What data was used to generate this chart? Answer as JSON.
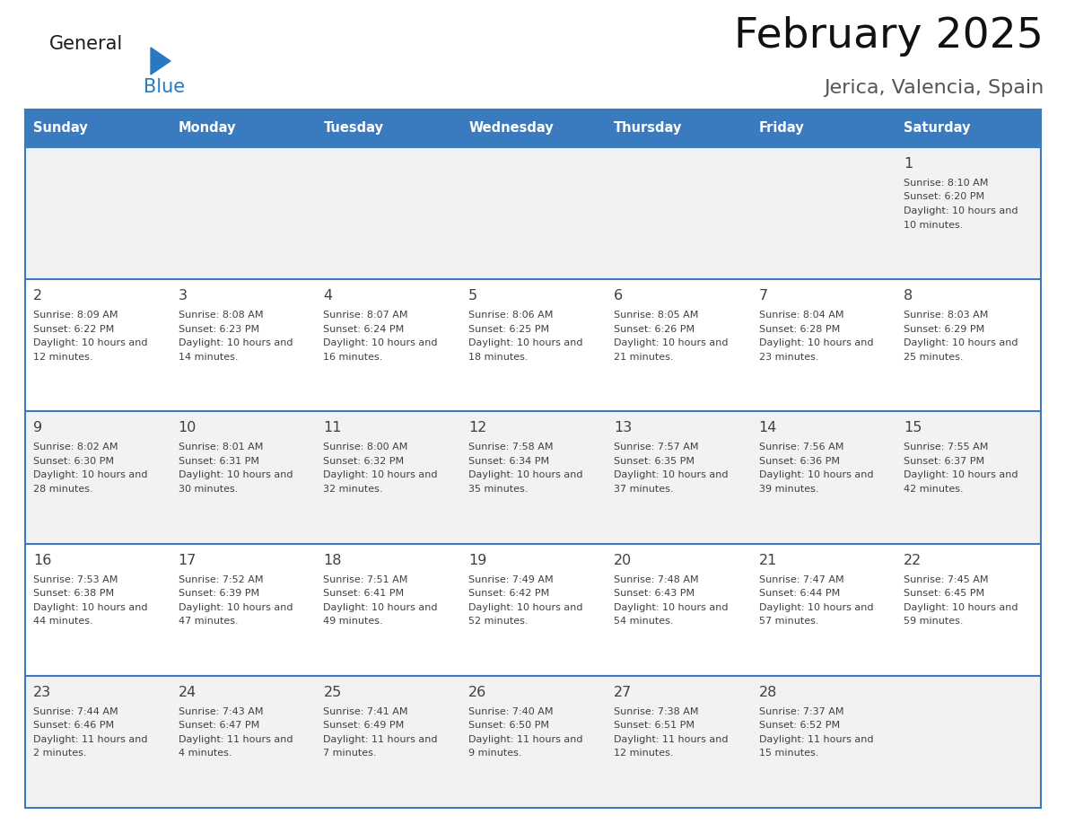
{
  "title": "February 2025",
  "subtitle": "Jerica, Valencia, Spain",
  "header_bg": "#3a7bbf",
  "header_text_color": "#ffffff",
  "days_of_week": [
    "Sunday",
    "Monday",
    "Tuesday",
    "Wednesday",
    "Thursday",
    "Friday",
    "Saturday"
  ],
  "cell_bg_row0": "#f2f2f2",
  "cell_bg_row1": "#ffffff",
  "cell_bg_row2": "#f2f2f2",
  "cell_bg_row3": "#ffffff",
  "cell_bg_row4": "#f2f2f2",
  "grid_line_color": "#3a7bbf",
  "text_color": "#404040",
  "day_num_color": "#404040",
  "logo_general_color": "#1a1a1a",
  "logo_blue_color": "#2879c0",
  "logo_triangle_color": "#2879c0",
  "calendar_data": [
    [
      null,
      null,
      null,
      null,
      null,
      null,
      {
        "day": 1,
        "sunrise": "8:10 AM",
        "sunset": "6:20 PM",
        "daylight": "10 hours and 10 minutes."
      }
    ],
    [
      {
        "day": 2,
        "sunrise": "8:09 AM",
        "sunset": "6:22 PM",
        "daylight": "10 hours and 12 minutes."
      },
      {
        "day": 3,
        "sunrise": "8:08 AM",
        "sunset": "6:23 PM",
        "daylight": "10 hours and 14 minutes."
      },
      {
        "day": 4,
        "sunrise": "8:07 AM",
        "sunset": "6:24 PM",
        "daylight": "10 hours and 16 minutes."
      },
      {
        "day": 5,
        "sunrise": "8:06 AM",
        "sunset": "6:25 PM",
        "daylight": "10 hours and 18 minutes."
      },
      {
        "day": 6,
        "sunrise": "8:05 AM",
        "sunset": "6:26 PM",
        "daylight": "10 hours and 21 minutes."
      },
      {
        "day": 7,
        "sunrise": "8:04 AM",
        "sunset": "6:28 PM",
        "daylight": "10 hours and 23 minutes."
      },
      {
        "day": 8,
        "sunrise": "8:03 AM",
        "sunset": "6:29 PM",
        "daylight": "10 hours and 25 minutes."
      }
    ],
    [
      {
        "day": 9,
        "sunrise": "8:02 AM",
        "sunset": "6:30 PM",
        "daylight": "10 hours and 28 minutes."
      },
      {
        "day": 10,
        "sunrise": "8:01 AM",
        "sunset": "6:31 PM",
        "daylight": "10 hours and 30 minutes."
      },
      {
        "day": 11,
        "sunrise": "8:00 AM",
        "sunset": "6:32 PM",
        "daylight": "10 hours and 32 minutes."
      },
      {
        "day": 12,
        "sunrise": "7:58 AM",
        "sunset": "6:34 PM",
        "daylight": "10 hours and 35 minutes."
      },
      {
        "day": 13,
        "sunrise": "7:57 AM",
        "sunset": "6:35 PM",
        "daylight": "10 hours and 37 minutes."
      },
      {
        "day": 14,
        "sunrise": "7:56 AM",
        "sunset": "6:36 PM",
        "daylight": "10 hours and 39 minutes."
      },
      {
        "day": 15,
        "sunrise": "7:55 AM",
        "sunset": "6:37 PM",
        "daylight": "10 hours and 42 minutes."
      }
    ],
    [
      {
        "day": 16,
        "sunrise": "7:53 AM",
        "sunset": "6:38 PM",
        "daylight": "10 hours and 44 minutes."
      },
      {
        "day": 17,
        "sunrise": "7:52 AM",
        "sunset": "6:39 PM",
        "daylight": "10 hours and 47 minutes."
      },
      {
        "day": 18,
        "sunrise": "7:51 AM",
        "sunset": "6:41 PM",
        "daylight": "10 hours and 49 minutes."
      },
      {
        "day": 19,
        "sunrise": "7:49 AM",
        "sunset": "6:42 PM",
        "daylight": "10 hours and 52 minutes."
      },
      {
        "day": 20,
        "sunrise": "7:48 AM",
        "sunset": "6:43 PM",
        "daylight": "10 hours and 54 minutes."
      },
      {
        "day": 21,
        "sunrise": "7:47 AM",
        "sunset": "6:44 PM",
        "daylight": "10 hours and 57 minutes."
      },
      {
        "day": 22,
        "sunrise": "7:45 AM",
        "sunset": "6:45 PM",
        "daylight": "10 hours and 59 minutes."
      }
    ],
    [
      {
        "day": 23,
        "sunrise": "7:44 AM",
        "sunset": "6:46 PM",
        "daylight": "11 hours and 2 minutes."
      },
      {
        "day": 24,
        "sunrise": "7:43 AM",
        "sunset": "6:47 PM",
        "daylight": "11 hours and 4 minutes."
      },
      {
        "day": 25,
        "sunrise": "7:41 AM",
        "sunset": "6:49 PM",
        "daylight": "11 hours and 7 minutes."
      },
      {
        "day": 26,
        "sunrise": "7:40 AM",
        "sunset": "6:50 PM",
        "daylight": "11 hours and 9 minutes."
      },
      {
        "day": 27,
        "sunrise": "7:38 AM",
        "sunset": "6:51 PM",
        "daylight": "11 hours and 12 minutes."
      },
      {
        "day": 28,
        "sunrise": "7:37 AM",
        "sunset": "6:52 PM",
        "daylight": "11 hours and 15 minutes."
      },
      null
    ]
  ]
}
